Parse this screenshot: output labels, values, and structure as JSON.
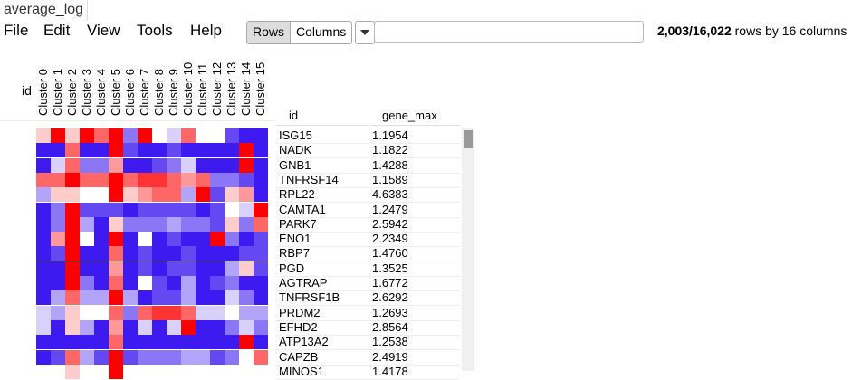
{
  "tab": {
    "label": "average_log"
  },
  "menu": [
    "File",
    "Edit",
    "View",
    "Tools",
    "Help"
  ],
  "view_toggle": {
    "options": [
      "Rows",
      "Columns"
    ],
    "selected": "Rows"
  },
  "search": {
    "value": ""
  },
  "status": {
    "count": "2,003/16,022",
    "suffix": " rows by 16 columns"
  },
  "heatmap_header": {
    "id_label": "id",
    "columns": [
      "Cluster 0",
      "Cluster 1",
      "Cluster 2",
      "Cluster 3",
      "Cluster 4",
      "Cluster 5",
      "Cluster 6",
      "Cluster 7",
      "Cluster 8",
      "Cluster 9",
      "Cluster 10",
      "Cluster 11",
      "Cluster 12",
      "Cluster 13",
      "Cluster 14",
      "Cluster 15"
    ]
  },
  "table": {
    "headers": [
      "id",
      "gene_max"
    ],
    "rows": [
      [
        "ISG15",
        "1.1954"
      ],
      [
        "NADK",
        "1.1822"
      ],
      [
        "GNB1",
        "1.4288"
      ],
      [
        "TNFRSF14",
        "1.1589"
      ],
      [
        "RPL22",
        "4.6383"
      ],
      [
        "CAMTA1",
        "1.2479"
      ],
      [
        "PARK7",
        "2.5942"
      ],
      [
        "ENO1",
        "2.2349"
      ],
      [
        "RBP7",
        "1.4760"
      ],
      [
        "PGD",
        "1.3525"
      ],
      [
        "AGTRAP",
        "1.6772"
      ],
      [
        "TNFRSF1B",
        "2.6292"
      ],
      [
        "PRDM2",
        "1.2693"
      ],
      [
        "EFHD2",
        "2.8564"
      ],
      [
        "ATP13A2",
        "1.2538"
      ],
      [
        "CAPZB",
        "2.4919"
      ],
      [
        "MINOS1",
        "1.4178"
      ]
    ]
  },
  "colors": {
    "low": "#3d1bf0",
    "mid": "#ffffff",
    "high": "#ff0000"
  },
  "heatmap_values": [
    [
      0.6,
      1,
      0.6,
      1,
      0.8,
      1,
      0.2,
      1,
      0.5,
      0.4,
      0.8,
      0.5,
      0.5,
      0.1,
      0,
      0
    ],
    [
      0,
      0,
      0.8,
      0,
      0,
      1,
      0.1,
      0,
      0,
      0.1,
      0,
      0,
      0,
      0,
      1,
      0
    ],
    [
      0,
      0.4,
      0.8,
      0.2,
      0.2,
      0.7,
      0,
      0,
      0.1,
      0.2,
      0.4,
      0,
      0,
      0,
      1,
      0
    ],
    [
      0.8,
      0.8,
      1,
      0.8,
      0.8,
      1,
      0.8,
      0.9,
      0.9,
      0.8,
      0.7,
      0.8,
      0.2,
      0.2,
      0.1,
      0
    ],
    [
      0.3,
      0.6,
      0.6,
      0.5,
      0.5,
      1,
      0.6,
      0.7,
      0.8,
      0.8,
      0.3,
      1,
      0.1,
      0.6,
      0.7,
      0
    ],
    [
      0,
      0.2,
      1,
      0.1,
      0.1,
      0.1,
      0,
      0.1,
      0.1,
      0.1,
      0.1,
      0,
      0.1,
      0.5,
      0.4,
      1
    ],
    [
      0,
      0.2,
      1,
      0.3,
      0,
      0.6,
      0.2,
      0.2,
      0.2,
      0.3,
      0.2,
      0.2,
      0.1,
      0.6,
      0.2,
      0.8
    ],
    [
      0,
      0.7,
      1,
      0.5,
      0,
      1,
      0,
      0.5,
      0,
      0.1,
      0,
      0,
      1,
      0.2,
      0,
      0.1
    ],
    [
      0,
      0.1,
      1,
      0,
      0,
      0.8,
      0,
      0.1,
      0,
      0,
      0.1,
      0,
      0,
      0,
      0.1,
      0.1
    ],
    [
      0,
      0,
      1,
      0,
      0,
      0.7,
      0,
      0.1,
      0,
      0.1,
      0.1,
      0,
      0,
      0.3,
      0.6,
      0.1
    ],
    [
      0,
      0,
      1,
      0.2,
      0,
      0.8,
      0,
      0.5,
      0.1,
      0,
      0.3,
      0,
      0.1,
      0.2,
      0,
      0
    ],
    [
      0,
      0.3,
      0.8,
      0.3,
      0.3,
      1,
      0.3,
      0,
      0.1,
      0.1,
      0.3,
      0,
      0,
      0.4,
      0.2,
      0
    ],
    [
      0.4,
      0.3,
      0.6,
      0.5,
      0.5,
      0.8,
      0.2,
      0.8,
      0.9,
      0.9,
      0.8,
      0.4,
      0.4,
      0.5,
      0.3,
      0.3
    ],
    [
      0.4,
      0,
      0.6,
      0.3,
      0,
      0.7,
      0,
      0.4,
      0,
      0.4,
      1,
      0,
      0,
      0.2,
      0.4,
      0.2
    ],
    [
      0,
      0,
      0,
      0,
      0,
      0.8,
      0,
      0,
      0,
      0,
      0,
      0,
      0,
      0,
      1,
      0
    ],
    [
      0,
      0.1,
      0.8,
      0.3,
      0.1,
      1,
      0.1,
      0.2,
      0.2,
      0.2,
      0.3,
      0.3,
      0.1,
      0.2,
      0.5,
      0.8
    ],
    [
      0.5,
      0.5,
      0.6,
      0.5,
      0.5,
      1,
      0.5,
      0.5,
      0.5,
      0.5,
      0.5,
      0.5,
      0.5,
      0.5,
      0.5,
      0.5
    ]
  ]
}
